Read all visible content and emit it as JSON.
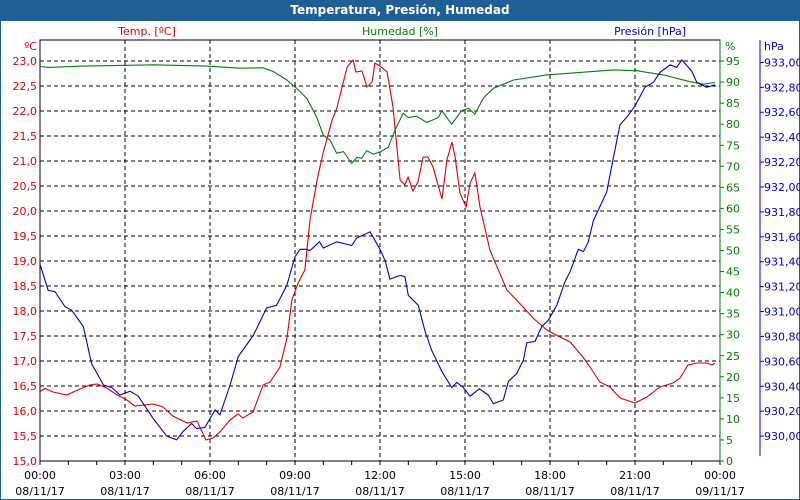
{
  "title": "Temperatura, Presión, Humedad",
  "colors": {
    "temp": "#dd0000",
    "hum": "#008000",
    "pres": "#0000cc",
    "titlebar": "#1f5f96"
  },
  "chart_data": {
    "type": "line",
    "title": "Temperatura, Presión, Humedad",
    "xlabel": "",
    "x_unit": "hours since 00:00 08/11/17",
    "xlim": [
      0,
      24
    ],
    "x_ticks": [
      {
        "time": "00:00",
        "date": "08/11/17"
      },
      {
        "time": "03:00",
        "date": "08/11/17"
      },
      {
        "time": "06:00",
        "date": "08/11/17"
      },
      {
        "time": "09:00",
        "date": "08/11/17"
      },
      {
        "time": "12:00",
        "date": "08/11/17"
      },
      {
        "time": "15:00",
        "date": "08/11/17"
      },
      {
        "time": "18:00",
        "date": "08/11/17"
      },
      {
        "time": "21:00",
        "date": "08/11/17"
      },
      {
        "time": "00:00",
        "date": "09/11/17"
      }
    ],
    "grid": true,
    "axes": {
      "temp": {
        "label": "Temp. [ºC]",
        "unit": "ºC",
        "ylim": [
          15.0,
          23.42
        ],
        "ticks": [
          "15,0",
          "15,5",
          "16,0",
          "16,5",
          "17,0",
          "17,5",
          "18,0",
          "18,5",
          "19,0",
          "19,5",
          "20,0",
          "20,5",
          "21,0",
          "21,5",
          "22,0",
          "22,5",
          "23,0"
        ]
      },
      "hum": {
        "label": "Humedad [%]",
        "unit": "%",
        "ylim": [
          0,
          100
        ],
        "ticks": [
          "0",
          "5",
          "10",
          "15",
          "20",
          "25",
          "30",
          "35",
          "40",
          "45",
          "50",
          "55",
          "60",
          "65",
          "70",
          "75",
          "80",
          "85",
          "90",
          "95"
        ]
      },
      "pres": {
        "label": "Presión [hPa]",
        "unit": "hPa",
        "ylim": [
          929.8,
          933.18
        ],
        "ticks": [
          "930,00",
          "930,20",
          "930,40",
          "930,60",
          "930,80",
          "931,00",
          "931,20",
          "931,40",
          "931,60",
          "931,80",
          "932,00",
          "932,20",
          "932,40",
          "932,60",
          "932,80",
          "933,00"
        ]
      }
    },
    "series": [
      {
        "name": "Temp. [ºC]",
        "axis": "temp",
        "points": [
          [
            0,
            16.39
          ],
          [
            0.18,
            16.45
          ],
          [
            0.46,
            16.38
          ],
          [
            0.95,
            16.32
          ],
          [
            1.41,
            16.44
          ],
          [
            1.76,
            16.52
          ],
          [
            2.01,
            16.54
          ],
          [
            2.36,
            16.46
          ],
          [
            2.72,
            16.32
          ],
          [
            3.07,
            16.22
          ],
          [
            3.35,
            16.1
          ],
          [
            3.64,
            16.12
          ],
          [
            3.99,
            16.14
          ],
          [
            4.34,
            16.08
          ],
          [
            4.69,
            15.9
          ],
          [
            5.19,
            15.76
          ],
          [
            5.54,
            15.8
          ],
          [
            5.86,
            15.42
          ],
          [
            6.11,
            15.46
          ],
          [
            6.35,
            15.58
          ],
          [
            6.71,
            15.82
          ],
          [
            6.99,
            15.94
          ],
          [
            7.16,
            15.86
          ],
          [
            7.52,
            15.98
          ],
          [
            7.87,
            16.52
          ],
          [
            8.12,
            16.58
          ],
          [
            8.47,
            16.88
          ],
          [
            8.72,
            17.48
          ],
          [
            8.89,
            18.22
          ],
          [
            9.11,
            18.56
          ],
          [
            9.35,
            18.82
          ],
          [
            9.53,
            19.82
          ],
          [
            9.78,
            20.62
          ],
          [
            9.99,
            21.16
          ],
          [
            10.31,
            21.82
          ],
          [
            10.48,
            22.06
          ],
          [
            10.84,
            22.88
          ],
          [
            11.05,
            23.02
          ],
          [
            11.15,
            22.78
          ],
          [
            11.36,
            22.8
          ],
          [
            11.54,
            22.48
          ],
          [
            11.72,
            22.58
          ],
          [
            11.82,
            22.96
          ],
          [
            12.0,
            22.9
          ],
          [
            12.25,
            22.78
          ],
          [
            12.46,
            22.08
          ],
          [
            12.71,
            20.62
          ],
          [
            12.88,
            20.52
          ],
          [
            12.99,
            20.68
          ],
          [
            13.16,
            20.4
          ],
          [
            13.34,
            20.58
          ],
          [
            13.52,
            21.08
          ],
          [
            13.69,
            21.08
          ],
          [
            13.87,
            20.88
          ],
          [
            14.19,
            20.24
          ],
          [
            14.36,
            21.02
          ],
          [
            14.54,
            21.38
          ],
          [
            14.65,
            21.08
          ],
          [
            14.82,
            20.36
          ],
          [
            15.04,
            20.08
          ],
          [
            15.18,
            20.56
          ],
          [
            15.35,
            20.76
          ],
          [
            15.53,
            20.08
          ],
          [
            15.88,
            19.22
          ],
          [
            16.48,
            18.42
          ],
          [
            17.05,
            18.08
          ],
          [
            17.4,
            17.86
          ],
          [
            17.89,
            17.62
          ],
          [
            18.35,
            17.48
          ],
          [
            18.71,
            17.38
          ],
          [
            19.16,
            17.08
          ],
          [
            19.41,
            16.88
          ],
          [
            19.76,
            16.58
          ],
          [
            20.12,
            16.48
          ],
          [
            20.47,
            16.26
          ],
          [
            21.0,
            16.16
          ],
          [
            21.42,
            16.28
          ],
          [
            21.88,
            16.48
          ],
          [
            22.34,
            16.56
          ],
          [
            22.59,
            16.66
          ],
          [
            22.87,
            16.92
          ],
          [
            23.19,
            16.96
          ],
          [
            23.54,
            16.96
          ],
          [
            23.72,
            16.92
          ],
          [
            23.82,
            16.96
          ]
        ]
      },
      {
        "name": "Humedad [%]",
        "axis": "hum",
        "points": [
          [
            0,
            93.7
          ],
          [
            0.35,
            93.5
          ],
          [
            1.53,
            93.8
          ],
          [
            4.0,
            94.1
          ],
          [
            5.88,
            93.8
          ],
          [
            7.06,
            93.3
          ],
          [
            7.88,
            93.4
          ],
          [
            8.24,
            92.5
          ],
          [
            8.71,
            90.5
          ],
          [
            9.06,
            88.5
          ],
          [
            9.41,
            86.2
          ],
          [
            9.76,
            81.8
          ],
          [
            10.0,
            77.4
          ],
          [
            10.24,
            76.2
          ],
          [
            10.47,
            73.1
          ],
          [
            10.71,
            73.5
          ],
          [
            11.0,
            70.7
          ],
          [
            11.18,
            72.1
          ],
          [
            11.35,
            71.9
          ],
          [
            11.53,
            73.7
          ],
          [
            11.76,
            72.9
          ],
          [
            12.0,
            73.4
          ],
          [
            12.29,
            74.5
          ],
          [
            12.53,
            78.6
          ],
          [
            12.82,
            82.6
          ],
          [
            13.0,
            81.6
          ],
          [
            13.29,
            81.9
          ],
          [
            13.65,
            80.4
          ],
          [
            14.06,
            81.6
          ],
          [
            14.18,
            83.2
          ],
          [
            14.53,
            80.0
          ],
          [
            14.88,
            83.2
          ],
          [
            15.12,
            83.8
          ],
          [
            15.35,
            82.4
          ],
          [
            15.65,
            86.2
          ],
          [
            16.0,
            88.5
          ],
          [
            16.71,
            90.5
          ],
          [
            17.88,
            91.7
          ],
          [
            20.24,
            92.9
          ],
          [
            21.06,
            92.7
          ],
          [
            22.0,
            91.7
          ],
          [
            22.94,
            90.1
          ],
          [
            23.41,
            89.5
          ],
          [
            23.82,
            89.9
          ]
        ]
      },
      {
        "name": "Presión [hPa]",
        "axis": "pres",
        "points": [
          [
            0,
            931.38
          ],
          [
            0.29,
            931.17
          ],
          [
            0.53,
            931.16
          ],
          [
            0.88,
            931.04
          ],
          [
            1.12,
            931.01
          ],
          [
            1.53,
            930.88
          ],
          [
            1.82,
            930.58
          ],
          [
            2.24,
            930.41
          ],
          [
            2.53,
            930.39
          ],
          [
            2.82,
            930.33
          ],
          [
            3.18,
            930.36
          ],
          [
            3.47,
            930.32
          ],
          [
            4.0,
            930.14
          ],
          [
            4.47,
            930.0
          ],
          [
            4.82,
            929.97
          ],
          [
            5.06,
            930.04
          ],
          [
            5.35,
            930.1
          ],
          [
            5.53,
            930.06
          ],
          [
            5.82,
            930.07
          ],
          [
            6.18,
            930.21
          ],
          [
            6.35,
            930.17
          ],
          [
            6.71,
            930.41
          ],
          [
            7.0,
            930.64
          ],
          [
            7.53,
            930.81
          ],
          [
            8.0,
            931.03
          ],
          [
            8.35,
            931.05
          ],
          [
            8.71,
            931.21
          ],
          [
            9.0,
            931.44
          ],
          [
            9.18,
            931.5
          ],
          [
            9.41,
            931.5
          ],
          [
            9.53,
            931.49
          ],
          [
            9.86,
            931.56
          ],
          [
            10.0,
            931.51
          ],
          [
            10.47,
            931.56
          ],
          [
            11.0,
            931.53
          ],
          [
            11.18,
            931.59
          ],
          [
            11.65,
            931.64
          ],
          [
            12.0,
            931.5
          ],
          [
            12.18,
            931.41
          ],
          [
            12.35,
            931.26
          ],
          [
            12.71,
            931.29
          ],
          [
            12.88,
            931.28
          ],
          [
            13.0,
            931.13
          ],
          [
            13.35,
            931.05
          ],
          [
            13.59,
            930.84
          ],
          [
            13.82,
            930.69
          ],
          [
            14.18,
            930.52
          ],
          [
            14.53,
            930.39
          ],
          [
            14.71,
            930.43
          ],
          [
            14.94,
            930.39
          ],
          [
            15.18,
            930.32
          ],
          [
            15.51,
            930.38
          ],
          [
            15.82,
            930.33
          ],
          [
            16.0,
            930.26
          ],
          [
            16.35,
            930.29
          ],
          [
            16.53,
            930.44
          ],
          [
            16.82,
            930.5
          ],
          [
            17.06,
            930.61
          ],
          [
            17.18,
            930.75
          ],
          [
            17.47,
            930.76
          ],
          [
            17.71,
            930.88
          ],
          [
            17.94,
            930.93
          ],
          [
            18.24,
            931.05
          ],
          [
            18.53,
            931.24
          ],
          [
            18.71,
            931.32
          ],
          [
            19.0,
            931.5
          ],
          [
            19.18,
            931.48
          ],
          [
            19.35,
            931.56
          ],
          [
            19.53,
            931.73
          ],
          [
            20.0,
            931.96
          ],
          [
            20.24,
            932.24
          ],
          [
            20.47,
            932.5
          ],
          [
            20.71,
            932.56
          ],
          [
            21.0,
            932.65
          ],
          [
            21.35,
            932.8
          ],
          [
            21.65,
            932.84
          ],
          [
            21.88,
            932.92
          ],
          [
            22.24,
            932.98
          ],
          [
            22.47,
            932.96
          ],
          [
            22.65,
            933.02
          ],
          [
            23.0,
            932.93
          ],
          [
            23.18,
            932.84
          ],
          [
            23.53,
            932.8
          ],
          [
            23.82,
            932.82
          ]
        ]
      }
    ]
  }
}
